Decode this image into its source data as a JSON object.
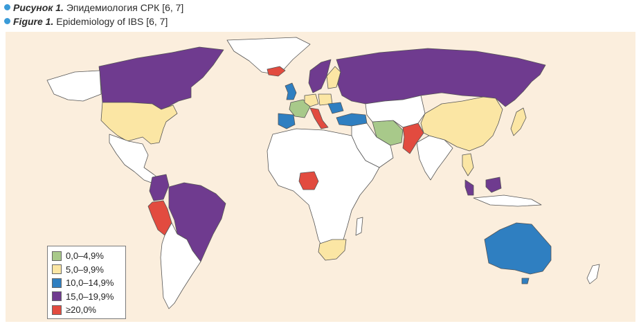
{
  "caption": {
    "ru_label": "Рисунок 1.",
    "ru_text": "Эпидемиология СРК [6, 7]",
    "en_label": "Figure 1.",
    "en_text": "Epidemiology of IBS [6, 7]"
  },
  "colors": {
    "background": "#fbeedd",
    "land": "#ffffff",
    "border": "#555555",
    "range_0_4_9": "#a8c98a",
    "range_5_9_9": "#fbe6a4",
    "range_10_14_9": "#2f7fc1",
    "range_15_19_9": "#6f3b8f",
    "range_20_plus": "#e24b3f"
  },
  "legend": {
    "items": [
      {
        "label": "0,0–4,9%",
        "color": "#a8c98a"
      },
      {
        "label": "5,0–9,9%",
        "color": "#fbe6a4"
      },
      {
        "label": "10,0–14,9%",
        "color": "#2f7fc1"
      },
      {
        "label": "15,0–19,9%",
        "color": "#6f3b8f"
      },
      {
        "label": "≥20,0%",
        "color": "#e24b3f"
      }
    ]
  }
}
